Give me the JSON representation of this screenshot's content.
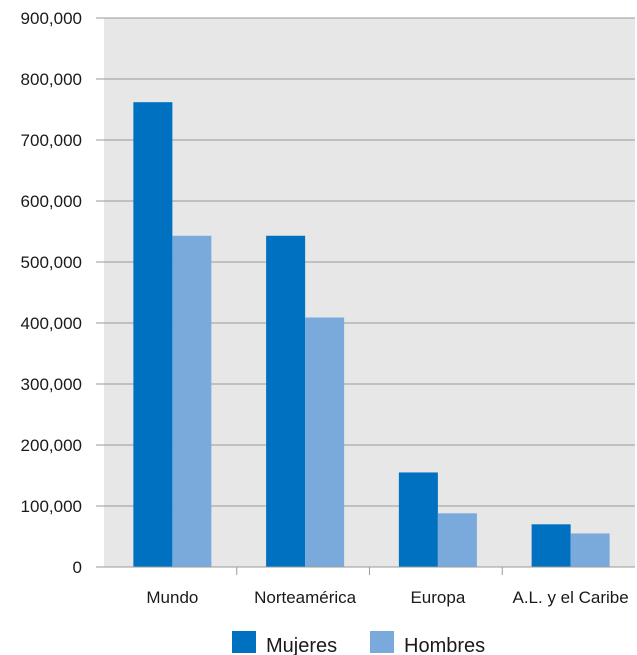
{
  "chart_data": {
    "type": "bar",
    "title": "",
    "xlabel": "",
    "ylabel": "",
    "categories": [
      "Mundo",
      "Norteamérica",
      "Europa",
      "A.L. y el Caribe"
    ],
    "series": [
      {
        "name": "Mujeres",
        "color": "#0070c0",
        "values": [
          762000,
          543000,
          155000,
          70000
        ]
      },
      {
        "name": "Hombres",
        "color": "#7aa9dc",
        "values": [
          543000,
          409000,
          88000,
          55000
        ]
      }
    ],
    "ylim": [
      0,
      900000
    ],
    "yticks": [
      0,
      100000,
      200000,
      300000,
      400000,
      500000,
      600000,
      700000,
      800000,
      900000
    ],
    "ytick_labels": [
      "0",
      "100,000",
      "200,000",
      "300,000",
      "400,000",
      "500,000",
      "600,000",
      "700,000",
      "800,000",
      "900,000"
    ],
    "grid": true,
    "plot_background": "#e7e7e7",
    "legend_position": "bottom-center"
  }
}
